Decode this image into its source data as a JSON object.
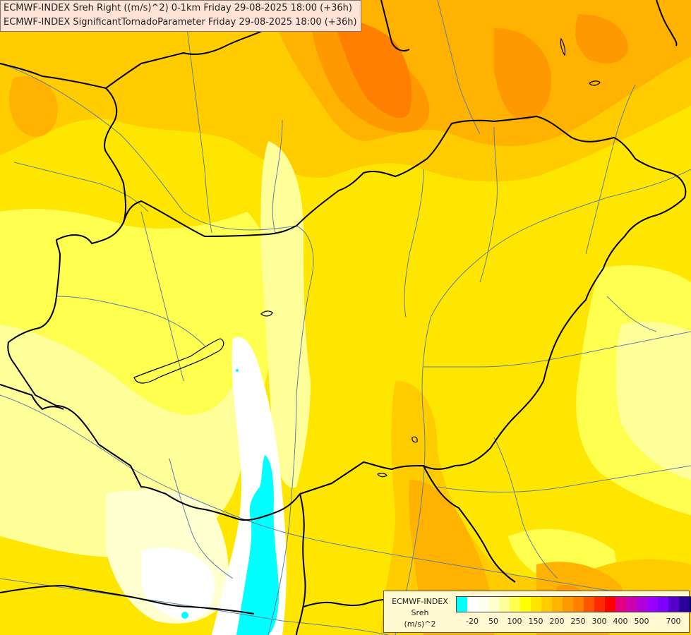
{
  "header": {
    "line1": "ECMWF-INDEX Sreh Right ((m/s)^2) 0-1km Friday 29-08-2025 18:00 (+36h)",
    "line2": "ECMWF-INDEX SignificantTornadoParameter Friday 29-08-2025 18:00 (+36h)"
  },
  "legend": {
    "model": "ECMWF-INDEX",
    "parameter": "Sreh",
    "unit": "(m/s)^2",
    "colors": [
      "#00ffff",
      "#ffffff",
      "#fffff0",
      "#ffffd0",
      "#ffff99",
      "#ffff50",
      "#ffff00",
      "#ffe600",
      "#ffcc00",
      "#ffb200",
      "#ff9900",
      "#ff7f00",
      "#ff5500",
      "#ff2a00",
      "#ff0000",
      "#e6007f",
      "#cc00b2",
      "#b200d9",
      "#9900ff",
      "#7f00ff",
      "#5500cc",
      "#2a0099",
      "#000066"
    ],
    "ticks": [
      "-20",
      "50",
      "100",
      "150",
      "200",
      "250",
      "300",
      "400",
      "500",
      "700"
    ]
  },
  "map_colors": {
    "background": "#ffe600",
    "border": "#000000",
    "river": "#5f7fa8"
  }
}
